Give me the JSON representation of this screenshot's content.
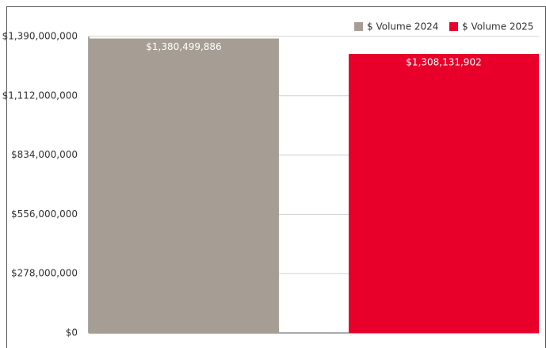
{
  "chart_data": {
    "type": "bar",
    "categories": [
      null
    ],
    "series": [
      {
        "name": "$ Volume 2024",
        "color": "#a69e94",
        "values": [
          1380499886
        ],
        "value_labels": [
          "$1,380,499,886"
        ]
      },
      {
        "name": "$ Volume 2025",
        "color": "#e8002a",
        "values": [
          1308131902
        ],
        "value_labels": [
          "$1,308,131,902"
        ]
      }
    ],
    "ylim": [
      0,
      1390000000
    ],
    "yticks": [
      {
        "value": 0,
        "label": "$0"
      },
      {
        "value": 278000000,
        "label": "$278,000,000"
      },
      {
        "value": 556000000,
        "label": "$556,000,000"
      },
      {
        "value": 834000000,
        "label": "$834,000,000"
      },
      {
        "value": 1112000000,
        "label": "$1,112,000,000"
      },
      {
        "value": 1390000000,
        "label": "$1,390,000,000"
      }
    ],
    "grid": true,
    "legend": "top-right"
  }
}
